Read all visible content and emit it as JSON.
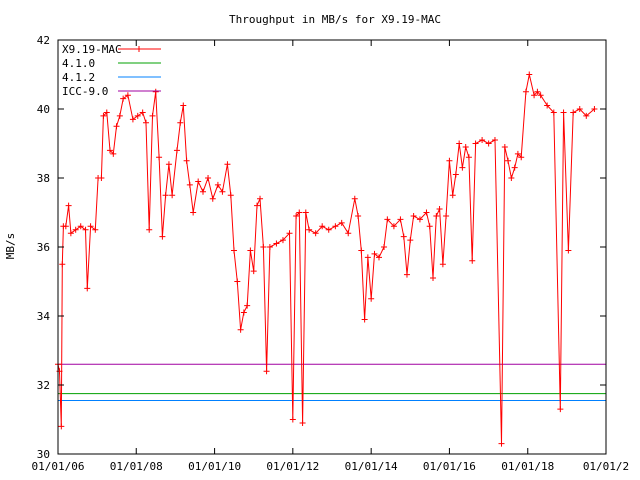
{
  "chart_data": {
    "type": "line",
    "title": "Throughput in MB/s for X9.19-MAC",
    "xlabel": "",
    "ylabel": "MB/s",
    "xlim": [
      "2006-01-01",
      "2020-01-01"
    ],
    "ylim": [
      30,
      42
    ],
    "yticks": [
      30,
      32,
      34,
      36,
      38,
      40,
      42
    ],
    "xticks": [
      {
        "date": "2006-01-01",
        "label": "01/01/06"
      },
      {
        "date": "2008-01-01",
        "label": "01/01/08"
      },
      {
        "date": "2010-01-01",
        "label": "01/01/10"
      },
      {
        "date": "2012-01-01",
        "label": "01/01/12"
      },
      {
        "date": "2014-01-01",
        "label": "01/01/14"
      },
      {
        "date": "2016-01-01",
        "label": "01/01/16"
      },
      {
        "date": "2018-01-01",
        "label": "01/01/18"
      },
      {
        "date": "2020-01-01",
        "label": "01/01/2"
      }
    ],
    "grid": false,
    "legend_position": "top-left",
    "series": [
      {
        "name": "X9.19-MAC",
        "color": "#ff0000",
        "marker": "plus",
        "points": [
          [
            "2006-01-01",
            32.6
          ],
          [
            "2006-01-15",
            32.4
          ],
          [
            "2006-02-01",
            30.8
          ],
          [
            "2006-02-10",
            35.5
          ],
          [
            "2006-02-20",
            36.6
          ],
          [
            "2006-03-15",
            36.6
          ],
          [
            "2006-04-10",
            37.2
          ],
          [
            "2006-05-01",
            36.4
          ],
          [
            "2006-06-15",
            36.5
          ],
          [
            "2006-08-01",
            36.6
          ],
          [
            "2006-09-15",
            36.5
          ],
          [
            "2006-10-01",
            34.8
          ],
          [
            "2006-11-01",
            36.6
          ],
          [
            "2006-12-15",
            36.5
          ],
          [
            "2007-01-10",
            38.0
          ],
          [
            "2007-02-10",
            38.0
          ],
          [
            "2007-03-01",
            39.8
          ],
          [
            "2007-04-01",
            39.9
          ],
          [
            "2007-05-01",
            38.8
          ],
          [
            "2007-06-01",
            38.7
          ],
          [
            "2007-07-01",
            39.5
          ],
          [
            "2007-08-01",
            39.8
          ],
          [
            "2007-09-01",
            40.3
          ],
          [
            "2007-10-15",
            40.4
          ],
          [
            "2007-12-01",
            39.7
          ],
          [
            "2008-01-15",
            39.8
          ],
          [
            "2008-03-01",
            39.9
          ],
          [
            "2008-04-01",
            39.6
          ],
          [
            "2008-05-01",
            36.5
          ],
          [
            "2008-06-01",
            39.8
          ],
          [
            "2008-07-01",
            40.5
          ],
          [
            "2008-08-01",
            38.6
          ],
          [
            "2008-09-01",
            36.3
          ],
          [
            "2008-10-01",
            37.5
          ],
          [
            "2008-11-01",
            38.4
          ],
          [
            "2008-12-01",
            37.5
          ],
          [
            "2009-01-15",
            38.8
          ],
          [
            "2009-02-15",
            39.6
          ],
          [
            "2009-03-15",
            40.1
          ],
          [
            "2009-04-15",
            38.5
          ],
          [
            "2009-05-15",
            37.8
          ],
          [
            "2009-06-15",
            37.0
          ],
          [
            "2009-08-01",
            37.9
          ],
          [
            "2009-09-15",
            37.6
          ],
          [
            "2009-11-01",
            38.0
          ],
          [
            "2009-12-15",
            37.4
          ],
          [
            "2010-02-01",
            37.8
          ],
          [
            "2010-03-15",
            37.6
          ],
          [
            "2010-05-01",
            38.4
          ],
          [
            "2010-06-01",
            37.5
          ],
          [
            "2010-07-01",
            35.9
          ],
          [
            "2010-08-01",
            35.0
          ],
          [
            "2010-09-01",
            33.6
          ],
          [
            "2010-10-01",
            34.1
          ],
          [
            "2010-11-01",
            34.3
          ],
          [
            "2010-12-01",
            35.9
          ],
          [
            "2011-01-01",
            35.3
          ],
          [
            "2011-02-01",
            37.2
          ],
          [
            "2011-03-01",
            37.4
          ],
          [
            "2011-04-01",
            36.0
          ],
          [
            "2011-05-01",
            32.4
          ],
          [
            "2011-06-01",
            36.0
          ],
          [
            "2011-08-01",
            36.1
          ],
          [
            "2011-10-01",
            36.2
          ],
          [
            "2011-12-01",
            36.4
          ],
          [
            "2012-01-01",
            31.0
          ],
          [
            "2012-02-01",
            36.9
          ],
          [
            "2012-03-01",
            37.0
          ],
          [
            "2012-04-01",
            30.9
          ],
          [
            "2012-05-01",
            37.0
          ],
          [
            "2012-06-01",
            36.5
          ],
          [
            "2012-08-01",
            36.4
          ],
          [
            "2012-10-01",
            36.6
          ],
          [
            "2012-12-01",
            36.5
          ],
          [
            "2013-02-01",
            36.6
          ],
          [
            "2013-04-01",
            36.7
          ],
          [
            "2013-06-01",
            36.4
          ],
          [
            "2013-08-01",
            37.4
          ],
          [
            "2013-09-01",
            36.9
          ],
          [
            "2013-10-01",
            35.9
          ],
          [
            "2013-11-01",
            33.9
          ],
          [
            "2013-12-01",
            35.7
          ],
          [
            "2014-01-01",
            34.5
          ],
          [
            "2014-02-01",
            35.8
          ],
          [
            "2014-03-15",
            35.7
          ],
          [
            "2014-05-01",
            36.0
          ],
          [
            "2014-06-01",
            36.8
          ],
          [
            "2014-08-01",
            36.6
          ],
          [
            "2014-10-01",
            36.8
          ],
          [
            "2014-11-01",
            36.3
          ],
          [
            "2014-12-01",
            35.2
          ],
          [
            "2015-01-01",
            36.2
          ],
          [
            "2015-02-01",
            36.9
          ],
          [
            "2015-04-01",
            36.8
          ],
          [
            "2015-06-01",
            37.0
          ],
          [
            "2015-07-01",
            36.6
          ],
          [
            "2015-08-01",
            35.1
          ],
          [
            "2015-09-01",
            36.9
          ],
          [
            "2015-10-01",
            37.1
          ],
          [
            "2015-11-01",
            35.5
          ],
          [
            "2015-12-01",
            36.9
          ],
          [
            "2016-01-01",
            38.5
          ],
          [
            "2016-02-01",
            37.5
          ],
          [
            "2016-03-01",
            38.1
          ],
          [
            "2016-04-01",
            39.0
          ],
          [
            "2016-05-01",
            38.3
          ],
          [
            "2016-06-01",
            38.9
          ],
          [
            "2016-07-01",
            38.6
          ],
          [
            "2016-08-01",
            35.6
          ],
          [
            "2016-09-01",
            39.0
          ],
          [
            "2016-11-01",
            39.1
          ],
          [
            "2017-01-01",
            39.0
          ],
          [
            "2017-03-01",
            39.1
          ],
          [
            "2017-05-01",
            30.3
          ],
          [
            "2017-06-01",
            38.9
          ],
          [
            "2017-07-01",
            38.5
          ],
          [
            "2017-08-01",
            38.0
          ],
          [
            "2017-09-01",
            38.3
          ],
          [
            "2017-10-01",
            38.7
          ],
          [
            "2017-11-01",
            38.6
          ],
          [
            "2017-12-15",
            40.5
          ],
          [
            "2018-01-15",
            41.0
          ],
          [
            "2018-03-01",
            40.4
          ],
          [
            "2018-04-01",
            40.5
          ],
          [
            "2018-05-01",
            40.4
          ],
          [
            "2018-07-01",
            40.1
          ],
          [
            "2018-09-01",
            39.9
          ],
          [
            "2018-11-01",
            31.3
          ],
          [
            "2018-12-01",
            39.9
          ],
          [
            "2019-01-15",
            35.9
          ],
          [
            "2019-03-01",
            39.9
          ],
          [
            "2019-05-01",
            40.0
          ],
          [
            "2019-07-01",
            39.8
          ],
          [
            "2019-09-15",
            40.0
          ]
        ]
      },
      {
        "name": "4.1.0",
        "color": "#00a000",
        "constant": 31.75
      },
      {
        "name": "4.1.2",
        "color": "#0080ff",
        "constant": 31.55
      },
      {
        "name": "ICC-9.0",
        "color": "#a000a0",
        "constant": 32.6
      }
    ]
  }
}
